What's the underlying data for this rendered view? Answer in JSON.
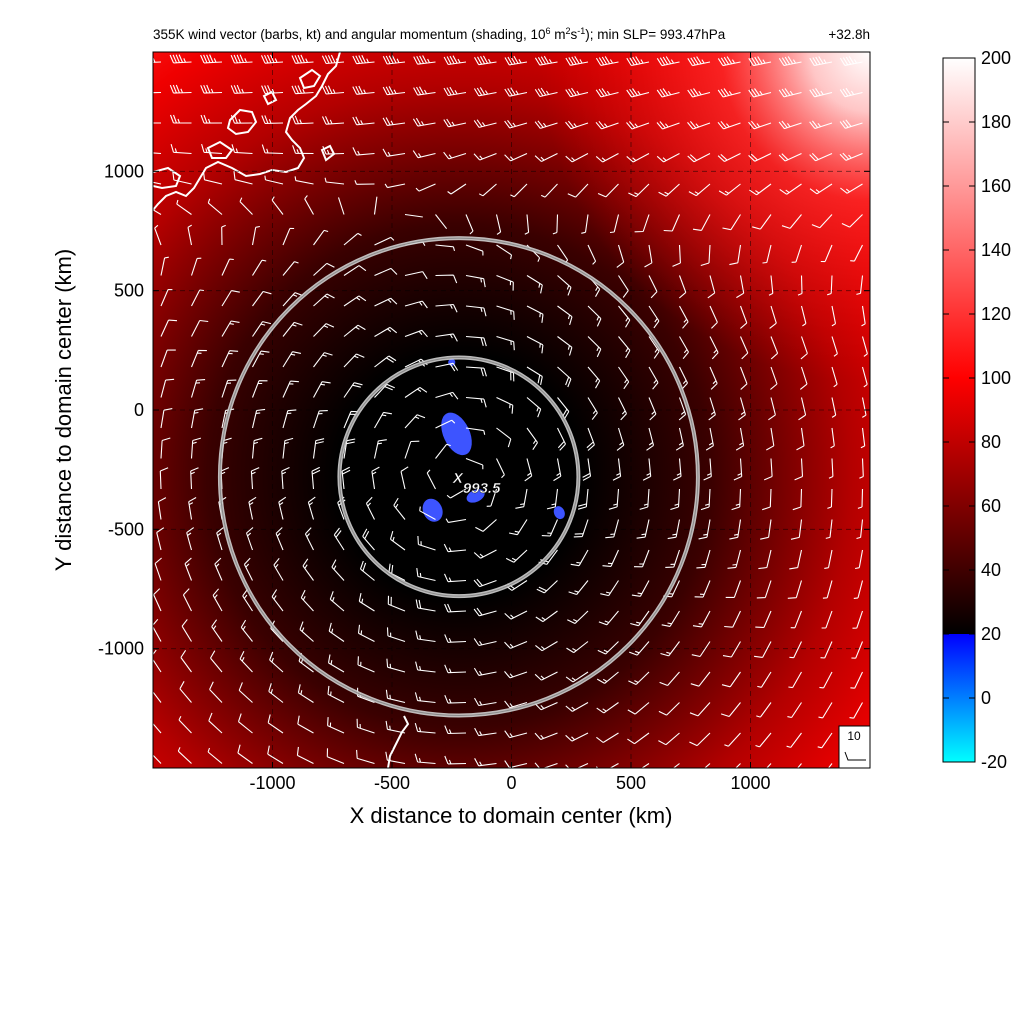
{
  "figure": {
    "title": "355K wind vector (barbs, kt) and angular momentum (shading, 10",
    "title_sup1": "6",
    "title_mid": " m",
    "title_sup2": "2",
    "title_mid2": "s",
    "title_sup3": "-1",
    "title_tail": "); min SLP= 993.47hPa",
    "forecast_time": "+32.8h"
  },
  "chart_data": {
    "type": "heatmap",
    "title": "355K wind vector (barbs, kt) and angular momentum (shading, 10^6 m^2 s^-1); min SLP= 993.47hPa",
    "forecast_time": "+32.8h",
    "xlabel": "X distance to domain center (km)",
    "ylabel": "Y distance to domain center (km)",
    "xlim": [
      -1500,
      1500
    ],
    "ylim": [
      -1500,
      1500
    ],
    "xticks": [
      -1000,
      -500,
      0,
      500,
      1000
    ],
    "yticks": [
      -1000,
      -500,
      0,
      500,
      1000
    ],
    "xtick_labels": [
      "-1000",
      "-500",
      "0",
      "500",
      "1000"
    ],
    "ytick_labels": [
      "-1000",
      "-500",
      "0",
      "500",
      "1000"
    ],
    "grid": true,
    "shading": {
      "variable": "angular momentum",
      "units": "10^6 m^2 s^-1",
      "colorbar_range": [
        -20,
        200
      ],
      "colorbar_ticks": [
        200,
        180,
        160,
        140,
        120,
        100,
        80,
        60,
        40,
        20,
        0,
        -20
      ],
      "colorbar_tick_labels": [
        "200",
        "180",
        "160",
        "140",
        "120",
        "100",
        "80",
        "60",
        "40",
        "20",
        "0",
        "-20"
      ],
      "colorbar_stops": [
        {
          "value": 200,
          "color": "#ffffff"
        },
        {
          "value": 100,
          "color": "#ff0000"
        },
        {
          "value": 20,
          "color": "#000000"
        },
        {
          "value": 0,
          "color": "#0000ff"
        },
        {
          "value": -20,
          "color": "#00ffff"
        }
      ]
    },
    "storm_center_km": [
      -220,
      -280
    ],
    "reference_circles_radius_km": [
      500,
      1000
    ],
    "min_slp_marker": {
      "symbol": "X",
      "label": "993.5",
      "x": -220,
      "y": -280
    },
    "negative_regions_km": [
      {
        "x": -230,
        "y": -100,
        "rx": 55,
        "ry": 95
      },
      {
        "x": -330,
        "y": -420,
        "rx": 40,
        "ry": 50
      },
      {
        "x": -150,
        "y": -360,
        "rx": 40,
        "ry": 25
      },
      {
        "x": 200,
        "y": -430,
        "rx": 22,
        "ry": 28
      },
      {
        "x": -250,
        "y": 200,
        "rx": 15,
        "ry": 15
      }
    ],
    "barb_reference": {
      "label": "10",
      "speed_kt": 10
    }
  }
}
